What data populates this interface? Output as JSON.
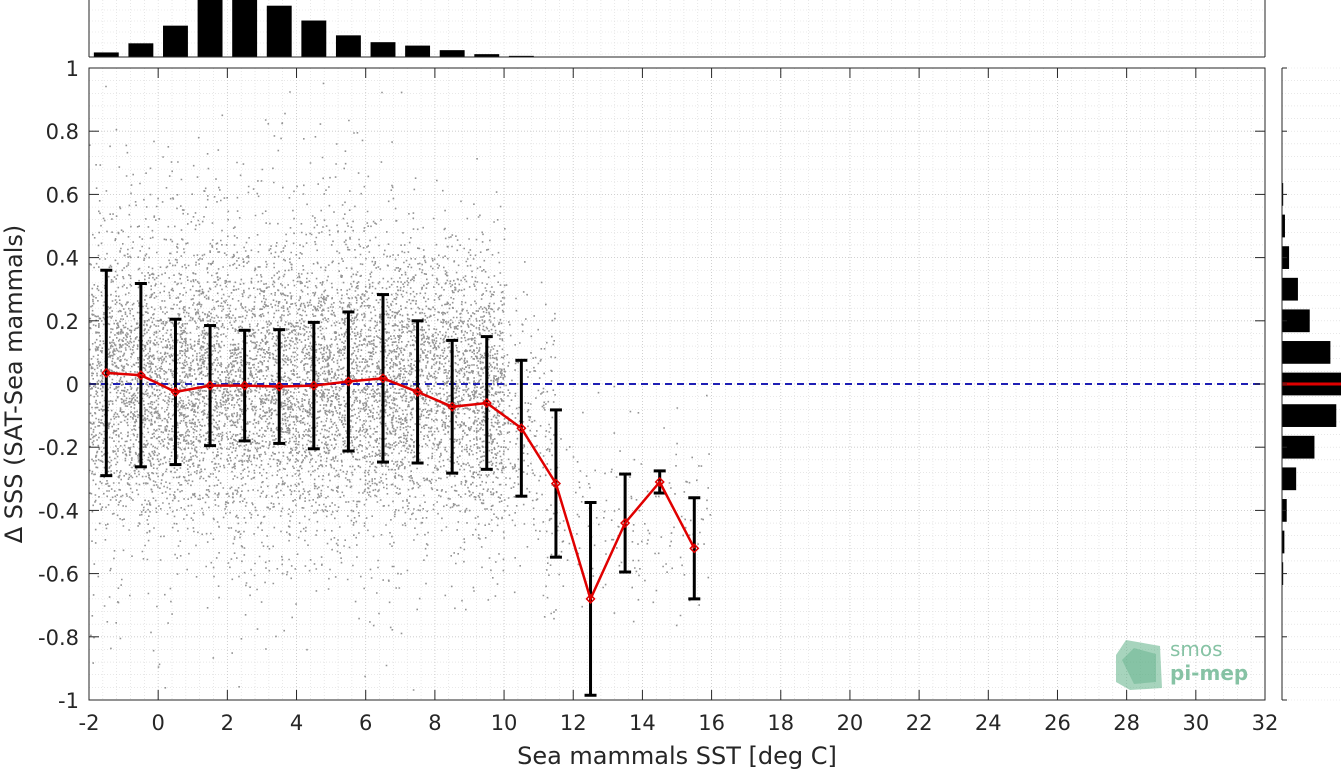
{
  "chart_data": {
    "type": "scatter",
    "xlabel": "Sea mammals SST [deg C]",
    "ylabel": "Δ SSS (SAT-Sea mammals)",
    "xlim": [
      -2,
      32
    ],
    "ylim": [
      -1,
      1
    ],
    "xticks": [
      "-2",
      "0",
      "2",
      "4",
      "6",
      "8",
      "10",
      "12",
      "14",
      "16",
      "18",
      "20",
      "22",
      "24",
      "26",
      "28",
      "30",
      "32"
    ],
    "yticks": [
      "1",
      "0.8",
      "0.6",
      "0.4",
      "0.2",
      "0",
      "-0.2",
      "-0.4",
      "-0.6",
      "-0.8",
      "-1"
    ],
    "grid": true,
    "reference_line": {
      "y": 0,
      "style": "dashed",
      "color": "#1f1fb4"
    },
    "scatter": {
      "color": "#808080",
      "clusters": [
        {
          "x_range": [
            -2,
            10
          ],
          "y_center": 0.0,
          "y_spread": 0.22,
          "weight": 0.82
        },
        {
          "x_range": [
            -2,
            7.5
          ],
          "y_center": 0.05,
          "y_spread": 0.42,
          "weight": 0.12
        },
        {
          "x_range": [
            9,
            11.5
          ],
          "y_center": -0.15,
          "y_spread": 0.2,
          "weight": 0.04
        },
        {
          "x_range": [
            11,
            16
          ],
          "y_center": -0.45,
          "y_spread": 0.15,
          "weight": 0.02
        }
      ]
    },
    "binned_mean": {
      "color": "#e00000",
      "x": [
        -1.5,
        -0.5,
        0.5,
        1.5,
        2.5,
        3.5,
        4.5,
        5.5,
        6.5,
        7.5,
        8.5,
        9.5,
        10.5,
        11.5,
        12.5,
        13.5,
        14.5,
        15.5
      ],
      "y": [
        0.035,
        0.028,
        -0.025,
        -0.005,
        -0.005,
        -0.008,
        -0.005,
        0.008,
        0.018,
        -0.025,
        -0.072,
        -0.06,
        -0.14,
        -0.315,
        -0.68,
        -0.44,
        -0.31,
        -0.52
      ],
      "err": [
        0.325,
        0.29,
        0.23,
        0.19,
        0.175,
        0.18,
        0.2,
        0.22,
        0.265,
        0.225,
        0.21,
        0.21,
        0.215,
        0.233,
        0.305,
        0.155,
        0.035,
        0.16
      ]
    },
    "top_histogram": {
      "bin_centers": [
        -1.5,
        -0.5,
        0.5,
        1.5,
        2.5,
        3.5,
        4.5,
        5.5,
        6.5,
        7.5,
        8.5,
        9.5,
        10.5
      ],
      "counts": [
        0.08,
        0.24,
        0.55,
        1.0,
        1.0,
        0.9,
        0.64,
        0.38,
        0.26,
        0.2,
        0.12,
        0.05,
        0.02
      ]
    },
    "right_histogram": {
      "bin_centers": [
        0.6,
        0.5,
        0.4,
        0.3,
        0.2,
        0.1,
        0.0,
        -0.1,
        -0.2,
        -0.3,
        -0.4,
        -0.5,
        -0.6
      ],
      "counts": [
        0.02,
        0.05,
        0.12,
        0.27,
        0.47,
        0.82,
        1.0,
        0.92,
        0.55,
        0.24,
        0.08,
        0.04,
        0.02
      ],
      "mean_line_color": "#e00000"
    }
  },
  "logo": {
    "line1": "smos",
    "line2": "pi-mep",
    "color": "#5fb087"
  }
}
